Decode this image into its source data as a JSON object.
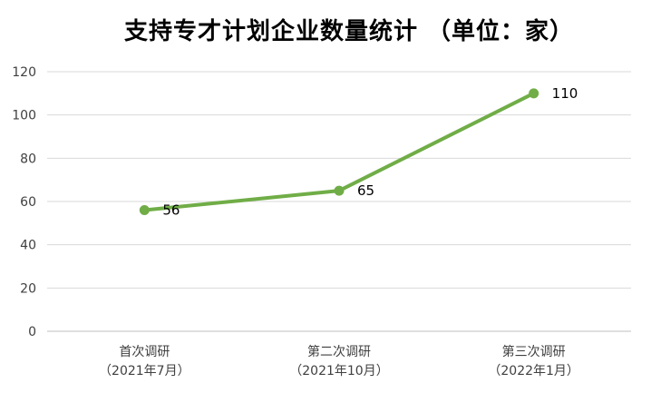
{
  "colors": {
    "series": "#70ad47",
    "grid": "#d9d9d9",
    "axis": "#bfbfbf",
    "text": "#404040"
  },
  "chart_data": {
    "type": "line",
    "title": "支持专才计划企业数量统计 （单位：家）",
    "xlabel": "",
    "ylabel": "",
    "categories": [
      [
        "首次调研",
        "（2021年7月）"
      ],
      [
        "第二次调研",
        "（2021年10月）"
      ],
      [
        "第三次调研",
        "（2022年1月）"
      ]
    ],
    "series": [
      {
        "values": [
          56,
          65,
          110
        ]
      }
    ],
    "ylim": [
      0,
      120
    ],
    "yticks": [
      0,
      20,
      40,
      60,
      80,
      100,
      120
    ],
    "grid": true,
    "data_labels": true,
    "legend": "none"
  }
}
